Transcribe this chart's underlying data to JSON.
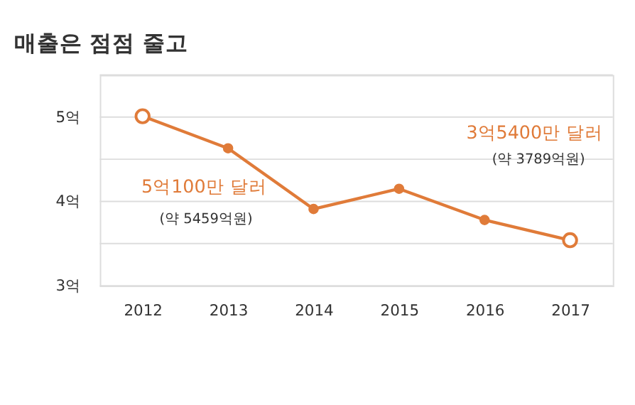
{
  "chart_data": {
    "type": "line",
    "title": "매출은 점점 줄고",
    "categories": [
      "2012",
      "2013",
      "2014",
      "2015",
      "2016",
      "2017"
    ],
    "series": [
      {
        "color": "#e07b39",
        "values": [
          5.01,
          4.63,
          3.91,
          4.15,
          3.78,
          3.54
        ]
      }
    ],
    "ylim": [
      3,
      5.5
    ],
    "yticks": [
      {
        "value": 3,
        "label": "3억"
      },
      {
        "value": 3.5,
        "label": null
      },
      {
        "value": 4,
        "label": "4억"
      },
      {
        "value": 4.5,
        "label": null
      },
      {
        "value": 5,
        "label": "5억"
      },
      {
        "value": 5.5,
        "label": null
      }
    ],
    "grid": "y",
    "marker": "circle",
    "line_style": "solid",
    "annotations": [
      "5억100만 달러",
      "(약 5459억원)",
      "3억5400만 달러",
      "(약 3789억원)"
    ]
  }
}
